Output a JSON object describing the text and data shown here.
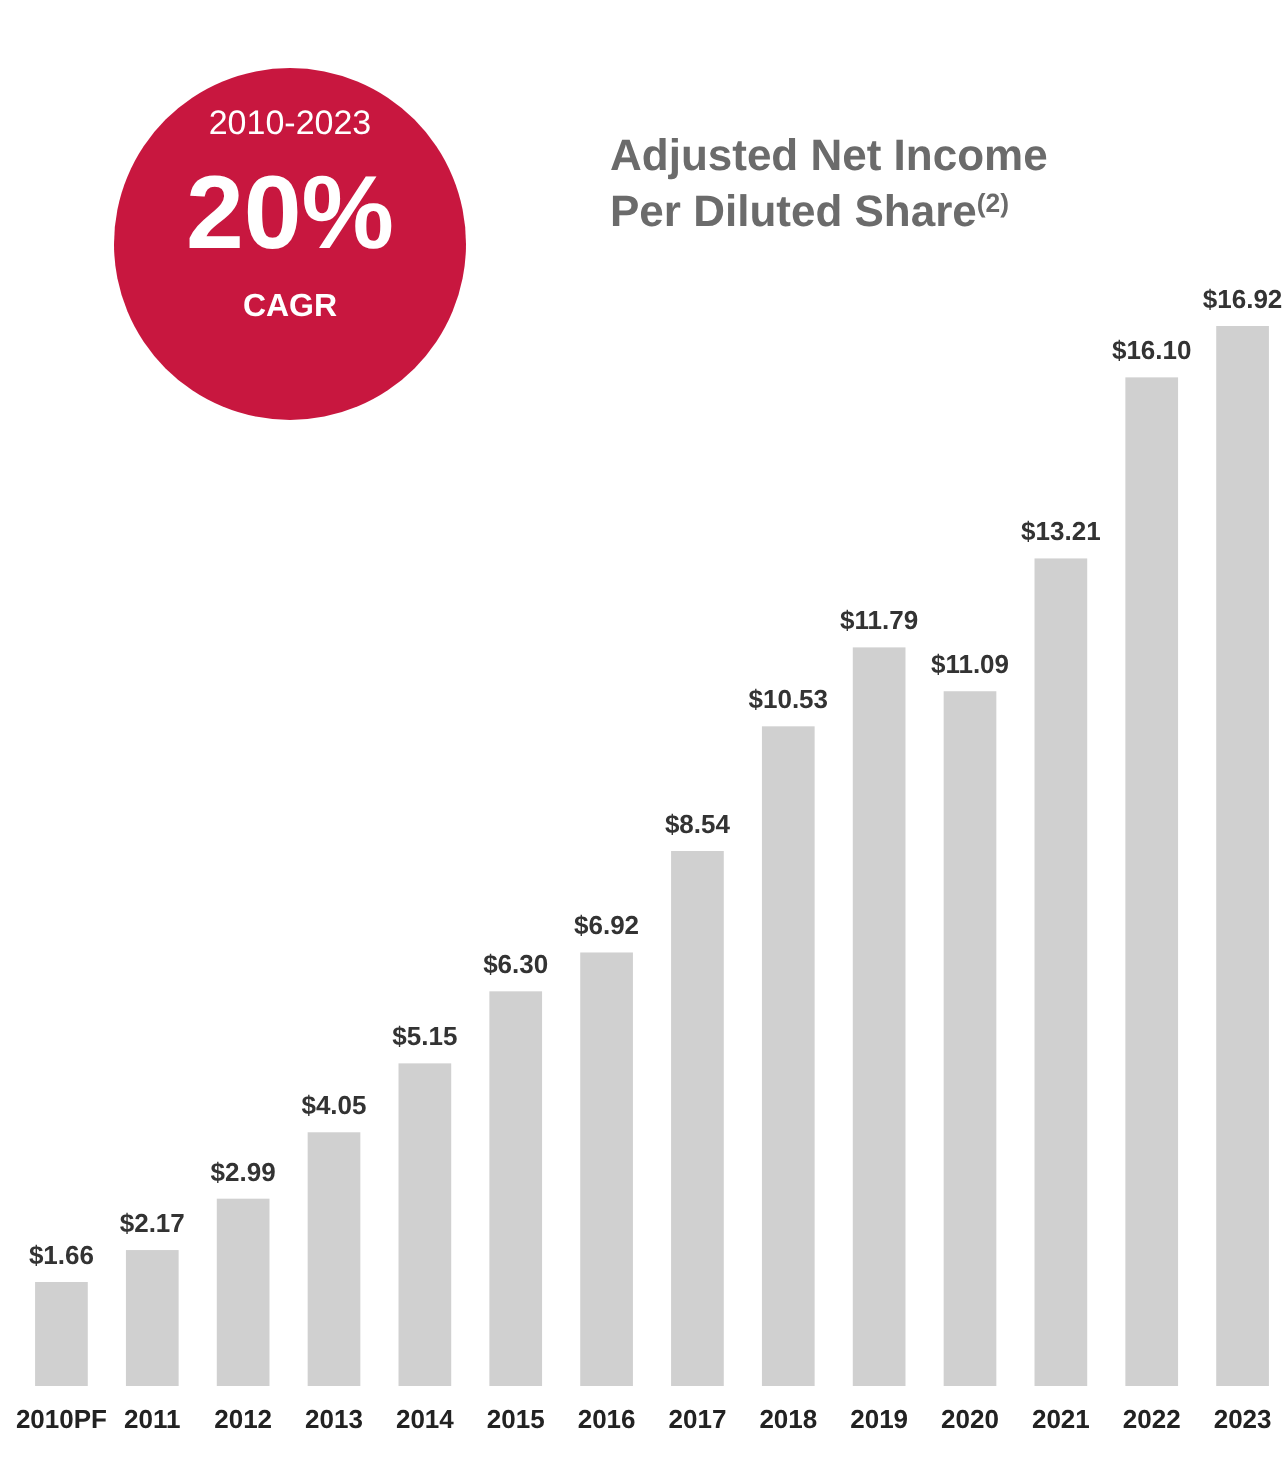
{
  "chart_data": {
    "type": "bar",
    "title": "Adjusted Net Income Per Diluted Share$^{(2)}$",
    "categories": [
      "2010PF",
      "2011",
      "2012",
      "2013",
      "2014",
      "2015",
      "2016",
      "2017",
      "2018",
      "2019",
      "2020",
      "2021",
      "2022",
      "2023"
    ],
    "values": [
      1.66,
      2.17,
      2.99,
      4.05,
      5.15,
      6.3,
      6.92,
      8.54,
      10.53,
      11.79,
      11.09,
      13.21,
      16.1,
      16.92
    ],
    "value_labels": [
      "$1.66",
      "$2.17",
      "$2.99",
      "$4.05",
      "$5.15",
      "$6.30",
      "$6.92",
      "$8.54",
      "$10.53",
      "$11.79",
      "$11.09",
      "$13.21",
      "$16.10",
      "$16.92"
    ],
    "color": "#d0d0d0",
    "ylim": [
      0,
      16.92
    ],
    "annotations": [
      "2010-2023",
      "20%",
      "CAGR"
    ]
  }
}
